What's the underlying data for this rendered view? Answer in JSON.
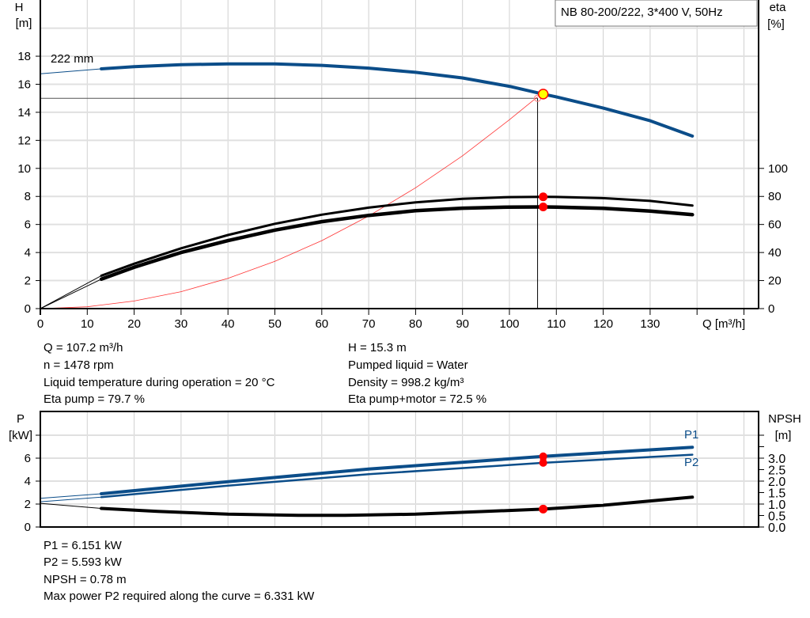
{
  "chart_data": [
    {
      "type": "line",
      "title": "NB 80-200/222, 3*400 V, 50Hz",
      "xlabel": "Q [m³/h]",
      "ylabel_left": [
        "H",
        "[m]"
      ],
      "ylabel_right": [
        "eta",
        "[%]"
      ],
      "xlim": [
        0,
        153
      ],
      "ylim_left": [
        0,
        22
      ],
      "ylim_right_eta": [
        0,
        220
      ],
      "x_ticks": [
        0,
        10,
        20,
        30,
        40,
        50,
        60,
        70,
        80,
        90,
        100,
        110,
        120,
        130
      ],
      "y_ticks_left": [
        0,
        2,
        4,
        6,
        8,
        10,
        12,
        14,
        16,
        18
      ],
      "y_ticks_right": [
        0,
        20,
        40,
        60,
        80,
        100
      ],
      "grid": true,
      "curve_label": "222 mm",
      "series": [
        {
          "key": "H",
          "axis": "left",
          "color": "#0b4d89",
          "x": [
            0,
            13,
            20,
            30,
            40,
            50,
            60,
            70,
            80,
            90,
            100,
            107.2,
            110,
            120,
            130,
            139
          ],
          "y": [
            16.75,
            17.1,
            17.25,
            17.4,
            17.45,
            17.45,
            17.35,
            17.15,
            16.85,
            16.45,
            15.85,
            15.3,
            15.1,
            14.3,
            13.4,
            12.3
          ]
        },
        {
          "key": "eta_pump",
          "axis": "right",
          "color": "#000000",
          "x": [
            0,
            13,
            20,
            30,
            40,
            50,
            60,
            70,
            80,
            90,
            100,
            107.2,
            110,
            120,
            130,
            139
          ],
          "y": [
            0,
            23.5,
            32,
            43,
            52.5,
            60.5,
            67,
            72,
            75.8,
            78.3,
            79.5,
            79.7,
            79.6,
            78.8,
            76.8,
            73.5
          ]
        },
        {
          "key": "eta_pump_motor",
          "axis": "right",
          "color": "#000000",
          "x": [
            0,
            13,
            20,
            30,
            40,
            50,
            60,
            70,
            80,
            90,
            100,
            107.2,
            110,
            120,
            130,
            139
          ],
          "y": [
            0,
            21,
            29.5,
            40,
            48.5,
            56,
            62,
            66.5,
            69.8,
            71.6,
            72.4,
            72.5,
            72.4,
            71.5,
            69.5,
            67
          ]
        },
        {
          "key": "system",
          "axis": "left",
          "color": "#ff0000",
          "x": [
            0,
            10,
            20,
            30,
            40,
            50,
            60,
            70,
            80,
            90,
            100,
            106
          ],
          "y": [
            0,
            0.13,
            0.54,
            1.21,
            2.16,
            3.37,
            4.85,
            6.6,
            8.62,
            10.9,
            13.47,
            15.1
          ]
        }
      ],
      "duty_point": {
        "Q": 107.2,
        "H": 15.3,
        "eta_pump": 79.7,
        "eta_pump_motor": 72.5
      },
      "reference_lines": {
        "H": 15.0,
        "Q": 106
      }
    },
    {
      "type": "line",
      "ylabel_left": [
        "P",
        "[kW]"
      ],
      "ylabel_right": [
        "NPSH",
        "[m]"
      ],
      "xlim": [
        0,
        153
      ],
      "ylim_left": [
        0,
        10
      ],
      "ylim_right": [
        0,
        5
      ],
      "y_ticks_left": [
        0,
        2,
        4,
        6
      ],
      "y_ticks_right": [
        "0.0",
        "0.5",
        "1.0",
        "1.5",
        "2.0",
        "2.5",
        "3.0"
      ],
      "y_ticks_right_unlabeled": [
        3.5,
        4.0
      ],
      "grid": true,
      "series": [
        {
          "name": "P1",
          "axis": "left",
          "color": "#0b4d89",
          "x": [
            0,
            13,
            40,
            70,
            107.2,
            139
          ],
          "y": [
            2.5,
            2.9,
            3.95,
            5.05,
            6.151,
            6.95
          ]
        },
        {
          "name": "P2",
          "axis": "left",
          "color": "#0b4d89",
          "x": [
            0,
            13,
            40,
            70,
            107.2,
            139
          ],
          "y": [
            2.2,
            2.6,
            3.6,
            4.6,
            5.593,
            6.3
          ]
        },
        {
          "key": "NPSH",
          "axis": "right",
          "color": "#000000",
          "x": [
            0,
            13,
            25,
            40,
            55,
            65,
            80,
            95,
            107.2,
            120,
            139
          ],
          "y": [
            1.03,
            0.81,
            0.68,
            0.56,
            0.51,
            0.51,
            0.56,
            0.68,
            0.78,
            0.95,
            1.3
          ]
        }
      ]
    }
  ],
  "info_top": {
    "left": [
      "Q = 107.2 m³/h",
      "n = 1478 rpm",
      "Liquid temperature during operation = 20 °C",
      "Eta pump = 79.7 %"
    ],
    "right": [
      "H = 15.3 m",
      "Pumped liquid = Water",
      "Density = 998.2 kg/m³",
      "Eta pump+motor = 72.5 %"
    ]
  },
  "info_bottom": [
    "P1 = 6.151 kW",
    "P2 = 5.593 kW",
    "NPSH = 0.78 m",
    "Max power P2 required along the curve = 6.331 kW"
  ]
}
